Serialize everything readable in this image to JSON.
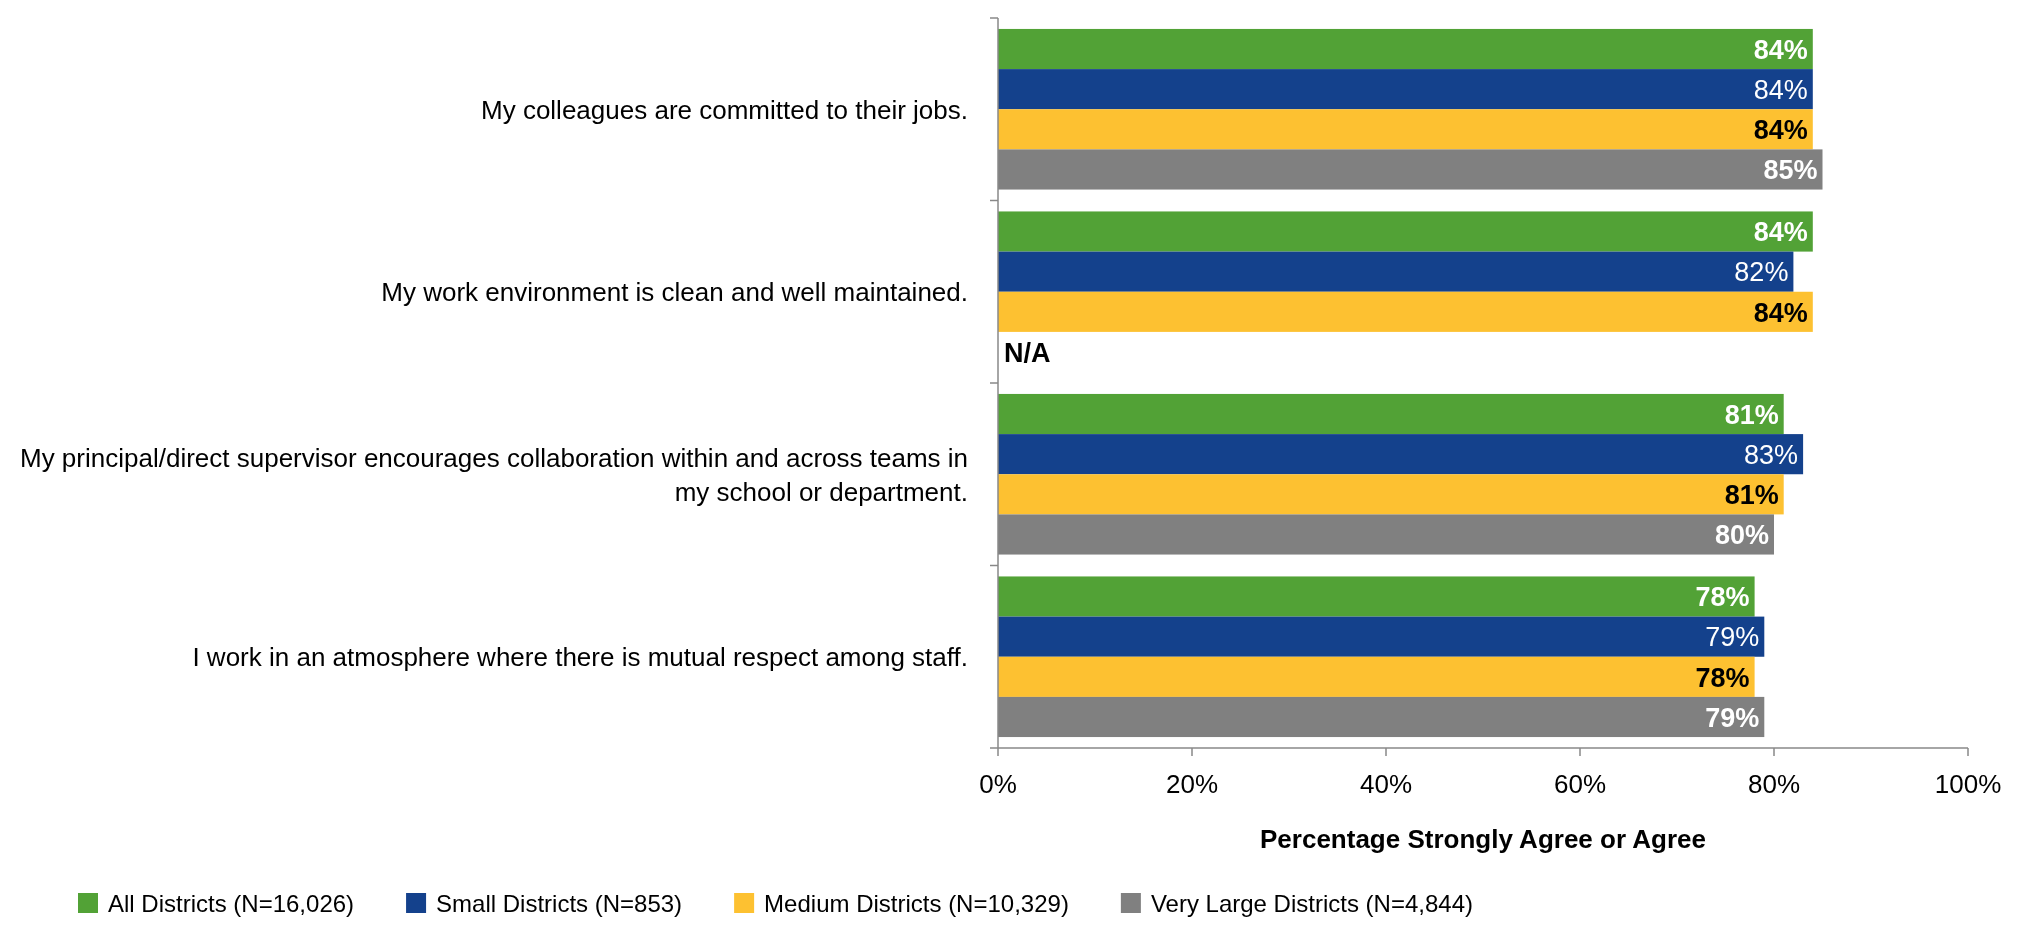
{
  "chart_data": {
    "type": "bar",
    "orientation": "horizontal",
    "xlabel": "Percentage Strongly Agree or Agree",
    "categories": [
      "My colleagues are committed to their jobs.",
      "My work environment is clean and well maintained.",
      "My principal/direct supervisor encourages collaboration within and across teams in my school or department.",
      "I work in an atmosphere where there is mutual respect among staff."
    ],
    "series": [
      {
        "name": "All Districts (N=16,026)",
        "color": "#52a236",
        "values": [
          84,
          84,
          81,
          78
        ],
        "value_labels": [
          "84%",
          "84%",
          "81%",
          "78%"
        ]
      },
      {
        "name": "Small Districts (N=853)",
        "color": "#14418c",
        "values": [
          84,
          82,
          83,
          79
        ],
        "value_labels": [
          "84%",
          "82%",
          "83%",
          "79%"
        ]
      },
      {
        "name": "Medium Districts (N=10,329)",
        "color": "#fdc131",
        "values": [
          84,
          84,
          81,
          78
        ],
        "value_labels": [
          "84%",
          "84%",
          "81%",
          "78%"
        ]
      },
      {
        "name": "Very Large Districts (N=4,844)",
        "color": "#808080",
        "values": [
          85,
          null,
          80,
          79
        ],
        "value_labels": [
          "85%",
          "N/A",
          "80%",
          "79%"
        ]
      }
    ],
    "xlim": [
      0,
      100
    ],
    "xticks": [
      {
        "value": 0,
        "label": "0%"
      },
      {
        "value": 20,
        "label": "20%"
      },
      {
        "value": 40,
        "label": "40%"
      },
      {
        "value": 60,
        "label": "60%"
      },
      {
        "value": 80,
        "label": "80%"
      },
      {
        "value": 100,
        "label": "100%"
      }
    ],
    "grid": false,
    "legend": "bottom"
  }
}
